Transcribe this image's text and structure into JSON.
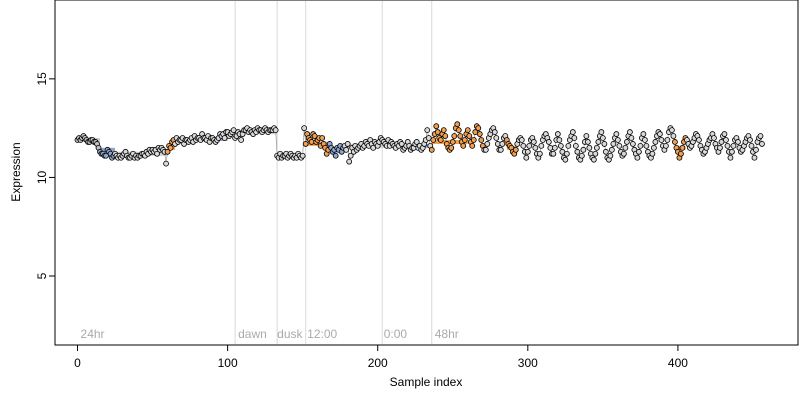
{
  "chart_data": {
    "type": "scatter",
    "title": "",
    "xlabel": "Sample index",
    "ylabel": "Expression",
    "xlim": [
      -15,
      480
    ],
    "ylim": [
      1.5,
      19.0
    ],
    "x_ticks": [
      0,
      100,
      200,
      300,
      400
    ],
    "y_ticks": [
      5,
      10,
      15
    ],
    "grid": false,
    "phase_lines": [
      105,
      133,
      152,
      203,
      236
    ],
    "phase_labels": [
      {
        "x": 2,
        "label": "24hr"
      },
      {
        "x": 107,
        "label": "dawn"
      },
      {
        "x": 133,
        "label": "dusk"
      },
      {
        "x": 153,
        "label": "12:00"
      },
      {
        "x": 204,
        "label": "0:00"
      },
      {
        "x": 238,
        "label": "48hr"
      }
    ],
    "step_lines": [
      {
        "x0": 0,
        "x1": 15,
        "y": 11.9,
        "color": "#cccccc"
      },
      {
        "x0": 15,
        "x1": 25,
        "y": 11.4,
        "color": "#8fa8d0"
      },
      {
        "x0": 25,
        "x1": 60,
        "y": 11.2,
        "color": "#cccccc"
      },
      {
        "x0": 60,
        "x1": 65,
        "y": 11.5,
        "color": "#f0a050"
      },
      {
        "x0": 65,
        "x1": 90,
        "y": 11.9,
        "color": "#cccccc"
      },
      {
        "x0": 90,
        "x1": 100,
        "y": 11.95,
        "color": "#8fa8d0"
      },
      {
        "x0": 100,
        "x1": 133,
        "y": 12.3,
        "color": "#cccccc"
      },
      {
        "x0": 133,
        "x1": 152,
        "y": 11.1,
        "color": "#cccccc"
      },
      {
        "x0": 152,
        "x1": 168,
        "y": 11.7,
        "color": "#f0a050"
      },
      {
        "x0": 168,
        "x1": 178,
        "y": 11.4,
        "color": "#8fa8d0"
      },
      {
        "x0": 178,
        "x1": 228,
        "y": 11.6,
        "color": "#cccccc"
      },
      {
        "x0": 228,
        "x1": 236,
        "y": 11.6,
        "color": "#8fa8d0"
      },
      {
        "x0": 236,
        "x1": 260,
        "y": 11.8,
        "color": "#f0a050"
      },
      {
        "x0": 286,
        "x1": 292,
        "y": 11.5,
        "color": "#f0a050"
      },
      {
        "x0": 398,
        "x1": 405,
        "y": 11.5,
        "color": "#f0a050"
      }
    ],
    "series": [
      {
        "marker": "open-circle",
        "x_start": 0,
        "x_step": 1,
        "values": [
          11.9,
          12.0,
          11.9,
          12.0,
          12.1,
          12.0,
          11.9,
          11.8,
          11.8,
          11.9,
          11.9,
          11.8,
          11.8,
          11.7,
          11.5,
          11.3,
          11.2,
          11.2,
          11.1,
          11.1,
          11.4,
          11.3,
          11.2,
          11.0,
          11.1,
          11.2,
          11.1,
          11.0,
          11.1,
          11.0,
          11.1,
          11.2,
          11.3,
          11.1,
          11.0,
          11.0,
          11.1,
          11.2,
          11.0,
          11.1,
          11.0,
          11.1,
          11.1,
          11.2,
          11.2,
          11.1,
          11.3,
          11.2,
          11.4,
          11.3,
          11.4,
          11.3,
          11.4,
          11.2,
          11.5,
          11.4,
          11.5,
          11.4,
          11.3,
          10.7,
          11.3,
          11.6,
          11.5,
          11.8,
          11.9,
          11.7,
          12.0,
          11.8,
          11.9,
          11.9,
          12.0,
          11.7,
          11.9,
          11.9,
          11.8,
          11.9,
          12.0,
          11.8,
          12.1,
          11.9,
          12.0,
          12.0,
          11.9,
          12.2,
          12.0,
          12.0,
          11.9,
          12.1,
          11.8,
          12.0,
          12.0,
          11.9,
          11.8,
          11.9,
          12.0,
          12.2,
          12.1,
          12.2,
          12.0,
          12.3,
          12.3,
          12.1,
          12.2,
          12.3,
          12.4,
          12.0,
          12.1,
          12.3,
          12.2,
          11.9,
          12.2,
          12.4,
          12.4,
          12.5,
          12.3,
          12.4,
          12.3,
          12.2,
          12.4,
          12.3,
          12.5,
          12.4,
          12.4,
          12.3,
          12.4,
          12.5,
          12.4,
          12.3,
          12.4,
          12.4,
          12.4,
          12.5,
          12.4,
          11.1,
          11.0,
          11.2,
          11.0,
          11.1,
          11.1,
          11.2,
          11.0,
          11.1,
          11.2,
          11.1,
          11.0,
          11.1,
          11.0,
          11.2,
          11.1,
          11.0,
          11.1,
          12.5,
          11.7,
          12.2,
          12.0,
          11.9,
          11.8,
          12.2,
          12.1,
          11.8,
          11.9,
          12.0,
          11.6,
          12.0,
          11.7,
          11.5,
          11.2,
          11.4,
          11.7,
          11.5,
          11.3,
          11.4,
          11.1,
          11.5,
          11.4,
          11.6,
          11.3,
          11.5,
          11.6,
          11.4,
          11.7,
          10.8,
          11.1,
          11.5,
          11.3,
          11.6,
          11.4,
          11.5,
          11.6,
          11.7,
          11.5,
          11.6,
          11.8,
          11.7,
          11.6,
          11.9,
          11.7,
          11.5,
          11.8,
          11.7,
          11.6,
          11.8,
          12.0,
          11.9,
          11.8,
          11.7,
          11.6,
          11.9,
          11.6,
          11.8,
          11.7,
          11.6,
          11.5,
          11.7,
          11.6,
          11.8,
          11.7,
          11.4,
          11.5,
          11.6,
          11.8,
          11.6,
          11.4,
          11.5,
          11.5,
          11.7,
          11.8,
          11.5,
          11.6,
          11.4,
          11.5,
          11.7,
          11.9,
          12.4,
          12.0,
          11.6,
          11.4,
          11.9,
          12.2,
          12.6,
          12.3,
          12.0,
          11.9,
          12.2,
          12.4,
          12.1,
          11.7,
          11.5,
          11.4,
          11.5,
          11.8,
          12.1,
          12.5,
          12.7,
          12.4,
          12.1,
          11.8,
          11.6,
          11.9,
          12.2,
          12.4,
          12.1,
          11.8,
          11.6,
          11.9,
          12.3,
          12.6,
          12.5,
          12.2,
          11.9,
          11.6,
          11.4,
          11.4,
          11.7,
          12.0,
          12.2,
          12.4,
          12.5,
          12.3,
          12.0,
          11.7,
          11.4,
          11.4,
          11.7,
          12.0,
          12.1,
          11.9,
          11.7,
          11.6,
          11.5,
          11.3,
          11.2,
          11.4,
          11.7,
          11.9,
          12.0,
          11.9,
          11.6,
          11.3,
          11.0,
          11.3,
          11.6,
          11.9,
          12.0,
          11.8,
          11.5,
          11.2,
          11.0,
          11.2,
          11.6,
          11.9,
          12.1,
          12.2,
          12.0,
          11.8,
          11.5,
          11.2,
          11.2,
          11.5,
          11.9,
          12.2,
          11.9,
          11.6,
          11.3,
          11.0,
          10.9,
          11.2,
          11.6,
          11.9,
          12.1,
          12.3,
          12.0,
          11.6,
          11.3,
          11.0,
          10.9,
          11.1,
          11.4,
          11.8,
          12.1,
          11.8,
          11.5,
          11.2,
          11.0,
          10.9,
          11.2,
          11.5,
          11.8,
          12.1,
          12.3,
          12.0,
          11.7,
          11.3,
          11.0,
          10.9,
          11.1,
          11.4,
          11.7,
          12.0,
          12.2,
          11.9,
          11.6,
          11.3,
          11.1,
          11.2,
          11.5,
          11.8,
          12.1,
          12.3,
          12.0,
          11.7,
          11.4,
          11.2,
          11.0,
          11.3,
          11.6,
          12.0,
          12.2,
          11.9,
          11.6,
          11.3,
          11.1,
          11.0,
          11.2,
          11.5,
          11.8,
          12.1,
          12.3,
          12.2,
          11.9,
          11.6,
          11.4,
          11.6,
          11.9,
          12.3,
          12.5,
          12.4,
          12.1,
          11.8,
          11.5,
          11.3,
          11.0,
          11.2,
          11.5,
          11.8,
          12.0,
          11.9,
          11.7,
          11.5,
          11.6,
          11.8,
          12.0,
          12.2,
          12.1,
          11.9,
          11.6,
          11.4,
          11.2,
          11.3,
          11.5,
          11.7,
          11.9,
          12.0,
          12.2,
          12.0,
          11.7,
          11.5,
          11.3,
          11.5,
          11.8,
          12.1,
          12.2,
          11.9,
          11.6,
          11.3,
          11.0,
          11.3,
          11.6,
          11.9,
          12.0,
          11.8,
          11.5,
          11.3,
          11.4,
          11.6,
          11.8,
          12.0,
          12.1,
          11.9,
          11.6,
          11.3,
          11.0,
          11.4,
          11.8,
          12.0,
          12.1,
          11.7
        ],
        "highlight_colors": {
          "0-14": "#bfbfbf",
          "15-24": "#8fa8d0",
          "60-64": "#f0a050",
          "152-167": "#f0a050",
          "168-177": "#8fa8d0",
          "236-270": "#f0a050",
          "286-292": "#f0a050",
          "398-405": "#f0a050"
        },
        "default_color": "#d9d9d9"
      }
    ]
  }
}
